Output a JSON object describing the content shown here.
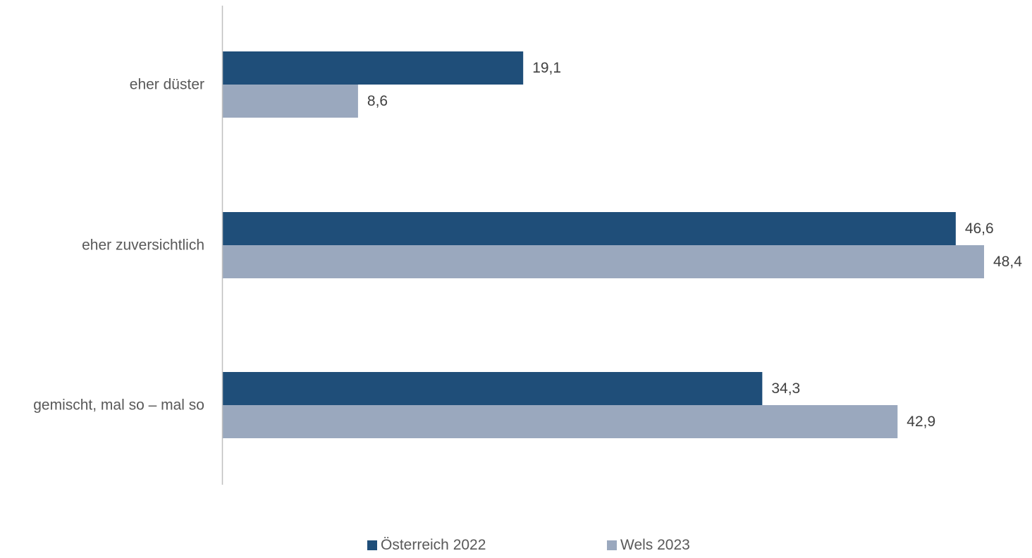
{
  "chart_data": {
    "type": "bar",
    "orientation": "horizontal",
    "categories": [
      "eher düster",
      "eher zuversichtlich",
      "gemischt, mal so – mal so"
    ],
    "series": [
      {
        "name": "Österreich 2022",
        "values": [
          19.1,
          46.6,
          34.3
        ],
        "labels": [
          "19,1",
          "46,6",
          "34,3"
        ],
        "color": "#1f4e79"
      },
      {
        "name": "Wels 2023",
        "values": [
          8.6,
          48.4,
          42.9
        ],
        "labels": [
          "8,6",
          "48,4",
          "42,9"
        ],
        "color": "#9aa8be"
      }
    ],
    "xlim": [
      0,
      48.4
    ],
    "grid": false,
    "legend_position": "bottom",
    "axis_color": "#bfbfbf"
  }
}
